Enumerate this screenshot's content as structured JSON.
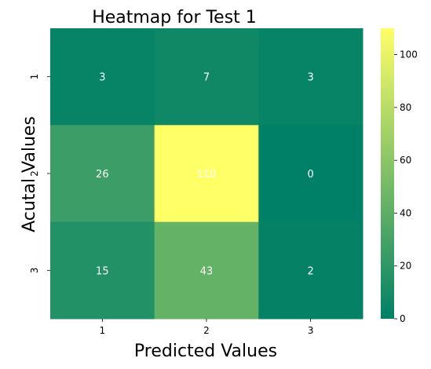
{
  "chart_data": {
    "type": "heatmap",
    "title": "Heatmap for Test 1",
    "xlabel": "Predicted Values",
    "ylabel": "Acutal Values",
    "x_categories": [
      "1",
      "2",
      "3"
    ],
    "y_categories": [
      "1",
      "2",
      "3"
    ],
    "values": [
      [
        3,
        7,
        3
      ],
      [
        26,
        110,
        0
      ],
      [
        15,
        43,
        2
      ]
    ],
    "colorbar": {
      "min": 0,
      "max": 110,
      "ticks": [
        "0",
        "20",
        "40",
        "60",
        "80",
        "100"
      ],
      "colormap": "summer",
      "colors": [
        "#008066",
        "#ffff66"
      ]
    },
    "grid": false,
    "legend": "colorbar-right"
  }
}
